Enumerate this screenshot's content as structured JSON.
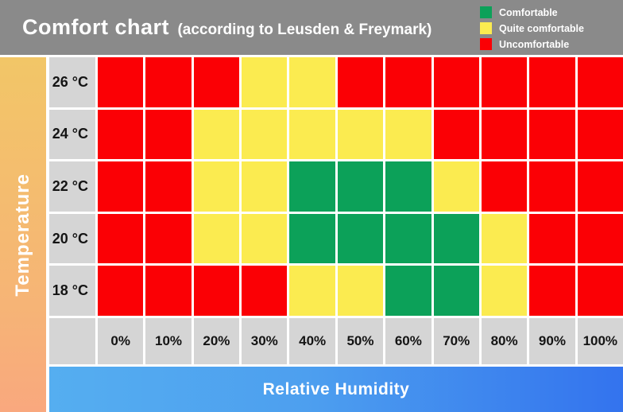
{
  "header": {
    "title": "Comfort chart",
    "subtitle": "(according to Leusden & Freymark)"
  },
  "legend": {
    "items": [
      {
        "key": "comfortable",
        "label": "Comfortable",
        "color": "#0CA159"
      },
      {
        "key": "quite_comfortable",
        "label": "Quite comfortable",
        "color": "#FBEB50"
      },
      {
        "key": "uncomfortable",
        "label": "Uncomfortable",
        "color": "#FB0005"
      }
    ]
  },
  "x_axis": {
    "label": "Relative Humidity"
  },
  "y_axis": {
    "label": "Temperature"
  },
  "chart_data": {
    "type": "heatmap",
    "title": "Comfort chart (according to Leusden & Freymark)",
    "xlabel": "Relative Humidity",
    "ylabel": "Temperature",
    "row_labels": [
      "26 °C",
      "24 °C",
      "22 °C",
      "20 °C",
      "18 °C"
    ],
    "col_labels": [
      "0%",
      "10%",
      "20%",
      "30%",
      "40%",
      "50%",
      "60%",
      "70%",
      "80%",
      "90%",
      "100%"
    ],
    "values": [
      [
        "uncomfortable",
        "uncomfortable",
        "uncomfortable",
        "quite_comfortable",
        "quite_comfortable",
        "uncomfortable",
        "uncomfortable",
        "uncomfortable",
        "uncomfortable",
        "uncomfortable",
        "uncomfortable"
      ],
      [
        "uncomfortable",
        "uncomfortable",
        "quite_comfortable",
        "quite_comfortable",
        "quite_comfortable",
        "quite_comfortable",
        "quite_comfortable",
        "uncomfortable",
        "uncomfortable",
        "uncomfortable",
        "uncomfortable"
      ],
      [
        "uncomfortable",
        "uncomfortable",
        "quite_comfortable",
        "quite_comfortable",
        "comfortable",
        "comfortable",
        "comfortable",
        "quite_comfortable",
        "uncomfortable",
        "uncomfortable",
        "uncomfortable"
      ],
      [
        "uncomfortable",
        "uncomfortable",
        "quite_comfortable",
        "quite_comfortable",
        "comfortable",
        "comfortable",
        "comfortable",
        "comfortable",
        "quite_comfortable",
        "uncomfortable",
        "uncomfortable"
      ],
      [
        "uncomfortable",
        "uncomfortable",
        "uncomfortable",
        "uncomfortable",
        "quite_comfortable",
        "quite_comfortable",
        "comfortable",
        "comfortable",
        "quite_comfortable",
        "uncomfortable",
        "uncomfortable"
      ]
    ],
    "value_colors": {
      "comfortable": "#0CA159",
      "quite_comfortable": "#FBEB50",
      "uncomfortable": "#FB0005"
    },
    "legend_position": "top-right",
    "grid": true
  },
  "colors": {
    "header_background": "#8A8A8A",
    "label_cell_background": "#D5D5D5",
    "grid_gap": "#FFFFFF",
    "temperature_axis_gradient_top": "#F2C667",
    "temperature_axis_gradient_bottom": "#F9A87E",
    "humidity_bar_gradient_left": "#55AEF0",
    "humidity_bar_gradient_right": "#3373EE",
    "header_text": "#FFFFFF",
    "cell_label_text": "#141414"
  }
}
